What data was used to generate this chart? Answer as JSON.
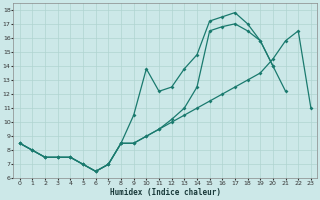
{
  "title": "",
  "xlabel": "Humidex (Indice chaleur)",
  "xlim": [
    -0.5,
    23.5
  ],
  "ylim": [
    6,
    18.5
  ],
  "xticks": [
    0,
    1,
    2,
    3,
    4,
    5,
    6,
    7,
    8,
    9,
    10,
    11,
    12,
    13,
    14,
    15,
    16,
    17,
    18,
    19,
    20,
    21,
    22,
    23
  ],
  "yticks": [
    6,
    7,
    8,
    9,
    10,
    11,
    12,
    13,
    14,
    15,
    16,
    17,
    18
  ],
  "bg_color": "#cce8e8",
  "line_color": "#1a7a6e",
  "grid_color": "#b0d4d0",
  "line1_x": [
    0,
    1,
    2,
    3,
    4,
    5,
    6,
    7,
    8,
    9,
    10,
    11,
    12,
    13,
    14,
    15,
    16,
    17,
    18,
    19,
    20
  ],
  "line1_y": [
    8.5,
    8.0,
    7.5,
    7.5,
    7.5,
    7.0,
    6.5,
    7.0,
    8.5,
    10.5,
    13.8,
    12.2,
    12.5,
    13.8,
    14.8,
    17.2,
    17.5,
    17.8,
    17.0,
    15.8,
    14.0
  ],
  "line2_x": [
    0,
    1,
    2,
    3,
    4,
    5,
    6,
    7,
    8,
    9,
    10,
    11,
    12,
    13,
    14,
    15,
    16,
    17,
    18,
    19,
    20,
    21,
    22,
    23
  ],
  "line2_y": [
    8.5,
    8.0,
    7.5,
    7.5,
    7.5,
    7.0,
    6.5,
    7.0,
    8.5,
    8.5,
    9.0,
    9.5,
    10.0,
    10.5,
    11.0,
    11.5,
    12.0,
    12.5,
    13.0,
    13.5,
    14.5,
    15.8,
    16.5,
    11.0
  ],
  "line3_x": [
    0,
    1,
    2,
    3,
    4,
    5,
    6,
    7,
    8,
    9,
    10,
    11,
    12,
    13,
    14,
    15,
    16,
    17,
    18,
    19,
    20,
    21
  ],
  "line3_y": [
    8.5,
    8.0,
    7.5,
    7.5,
    7.5,
    7.0,
    6.5,
    7.0,
    8.5,
    8.5,
    9.0,
    9.5,
    10.2,
    11.0,
    12.5,
    16.5,
    16.8,
    17.0,
    16.5,
    15.8,
    14.0,
    12.2
  ]
}
